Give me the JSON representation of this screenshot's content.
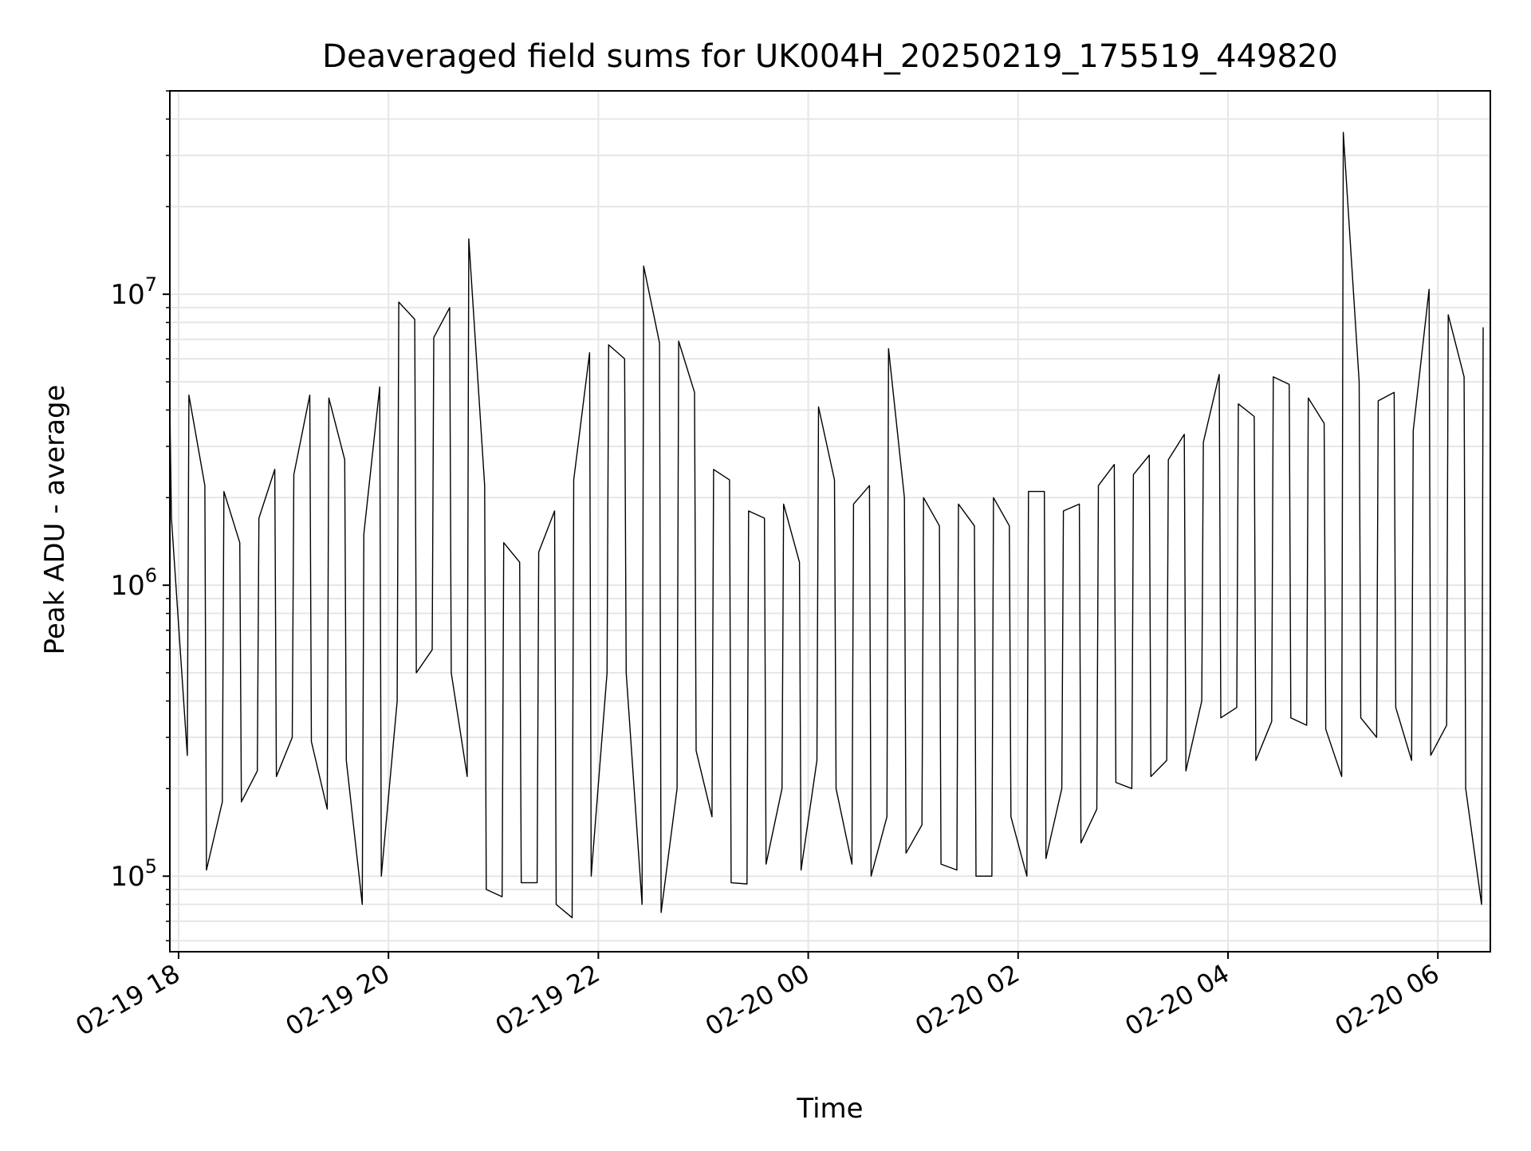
{
  "chart_data": {
    "type": "line",
    "title": "Deaveraged field sums for UK004H_20250219_175519_449820",
    "xlabel": "Time",
    "ylabel": "Peak ADU - average",
    "yscale": "log",
    "grid": true,
    "legend": "none",
    "xlim": [
      "2025-02-19T17:55",
      "2025-02-20T06:30"
    ],
    "ylim": [
      55000,
      50000000
    ],
    "x_ticks": [
      {
        "value": "2025-02-19T18:00",
        "label": "02-19 18"
      },
      {
        "value": "2025-02-19T20:00",
        "label": "02-19 20"
      },
      {
        "value": "2025-02-19T22:00",
        "label": "02-19 22"
      },
      {
        "value": "2025-02-20T00:00",
        "label": "02-20 00"
      },
      {
        "value": "2025-02-20T02:00",
        "label": "02-20 02"
      },
      {
        "value": "2025-02-20T04:00",
        "label": "02-20 04"
      },
      {
        "value": "2025-02-20T06:00",
        "label": "02-20 06"
      }
    ],
    "y_ticks": [
      {
        "value": 100000,
        "base": "10",
        "exp": "5"
      },
      {
        "value": 1000000,
        "base": "10",
        "exp": "6"
      },
      {
        "value": 10000000,
        "base": "10",
        "exp": "7"
      }
    ],
    "line_color": "#000000",
    "grid_color": "#e6e6e6",
    "series": [
      {
        "sampling": "upper and lower envelope of the trace per interval",
        "x": [
          "2025-02-19T17:55",
          "2025-02-19T18:05",
          "2025-02-19T18:15",
          "2025-02-19T18:25",
          "2025-02-19T18:35",
          "2025-02-19T18:45",
          "2025-02-19T18:55",
          "2025-02-19T19:05",
          "2025-02-19T19:15",
          "2025-02-19T19:25",
          "2025-02-19T19:35",
          "2025-02-19T19:45",
          "2025-02-19T19:55",
          "2025-02-19T20:05",
          "2025-02-19T20:15",
          "2025-02-19T20:25",
          "2025-02-19T20:35",
          "2025-02-19T20:45",
          "2025-02-19T20:55",
          "2025-02-19T21:05",
          "2025-02-19T21:15",
          "2025-02-19T21:25",
          "2025-02-19T21:35",
          "2025-02-19T21:45",
          "2025-02-19T21:55",
          "2025-02-19T22:05",
          "2025-02-19T22:15",
          "2025-02-19T22:25",
          "2025-02-19T22:35",
          "2025-02-19T22:45",
          "2025-02-19T22:55",
          "2025-02-19T23:05",
          "2025-02-19T23:15",
          "2025-02-19T23:25",
          "2025-02-19T23:35",
          "2025-02-19T23:45",
          "2025-02-19T23:55",
          "2025-02-20T00:05",
          "2025-02-20T00:15",
          "2025-02-20T00:25",
          "2025-02-20T00:35",
          "2025-02-20T00:45",
          "2025-02-20T00:55",
          "2025-02-20T01:05",
          "2025-02-20T01:15",
          "2025-02-20T01:25",
          "2025-02-20T01:35",
          "2025-02-20T01:45",
          "2025-02-20T01:55",
          "2025-02-20T02:05",
          "2025-02-20T02:15",
          "2025-02-20T02:25",
          "2025-02-20T02:35",
          "2025-02-20T02:45",
          "2025-02-20T02:55",
          "2025-02-20T03:05",
          "2025-02-20T03:15",
          "2025-02-20T03:25",
          "2025-02-20T03:35",
          "2025-02-20T03:45",
          "2025-02-20T03:55",
          "2025-02-20T04:05",
          "2025-02-20T04:15",
          "2025-02-20T04:25",
          "2025-02-20T04:35",
          "2025-02-20T04:45",
          "2025-02-20T04:55",
          "2025-02-20T05:05",
          "2025-02-20T05:15",
          "2025-02-20T05:25",
          "2025-02-20T05:35",
          "2025-02-20T05:45",
          "2025-02-20T05:55",
          "2025-02-20T06:05",
          "2025-02-20T06:15",
          "2025-02-20T06:25"
        ],
        "y_high": [
          4100000,
          4500000,
          2200000,
          2100000,
          1400000,
          1700000,
          2500000,
          2400000,
          4500000,
          4400000,
          2700000,
          1500000,
          4800000,
          9400000,
          8200000,
          7100000,
          9000000,
          15500000,
          2200000,
          1400000,
          1200000,
          1300000,
          1800000,
          2300000,
          6300000,
          6700000,
          6000000,
          12500000,
          6800000,
          6900000,
          4600000,
          2500000,
          2300000,
          1800000,
          1700000,
          1900000,
          1200000,
          4100000,
          2300000,
          1900000,
          2200000,
          6500000,
          2000000,
          2000000,
          1600000,
          1900000,
          1600000,
          2000000,
          1600000,
          2100000,
          2100000,
          1800000,
          1900000,
          2200000,
          2600000,
          2400000,
          2800000,
          2700000,
          3300000,
          3100000,
          5300000,
          4200000,
          3800000,
          5200000,
          4900000,
          4400000,
          3600000,
          36000000,
          5000000,
          4300000,
          4600000,
          3400000,
          10400000,
          8500000,
          5200000,
          7700000
        ],
        "y_low": [
          1700000,
          260000,
          105000,
          180000,
          180000,
          230000,
          220000,
          300000,
          290000,
          170000,
          250000,
          80000,
          100000,
          400000,
          500000,
          600000,
          500000,
          220000,
          90000,
          85000,
          95000,
          95000,
          80000,
          72000,
          100000,
          500000,
          500000,
          80000,
          75000,
          200000,
          270000,
          160000,
          95000,
          94000,
          110000,
          200000,
          105000,
          250000,
          200000,
          110000,
          100000,
          160000,
          120000,
          150000,
          110000,
          105000,
          100000,
          100000,
          160000,
          100000,
          115000,
          200000,
          130000,
          170000,
          210000,
          200000,
          220000,
          250000,
          230000,
          400000,
          350000,
          380000,
          250000,
          340000,
          350000,
          330000,
          320000,
          220000,
          350000,
          300000,
          380000,
          250000,
          260000,
          330000,
          200000,
          80000
        ]
      }
    ]
  }
}
